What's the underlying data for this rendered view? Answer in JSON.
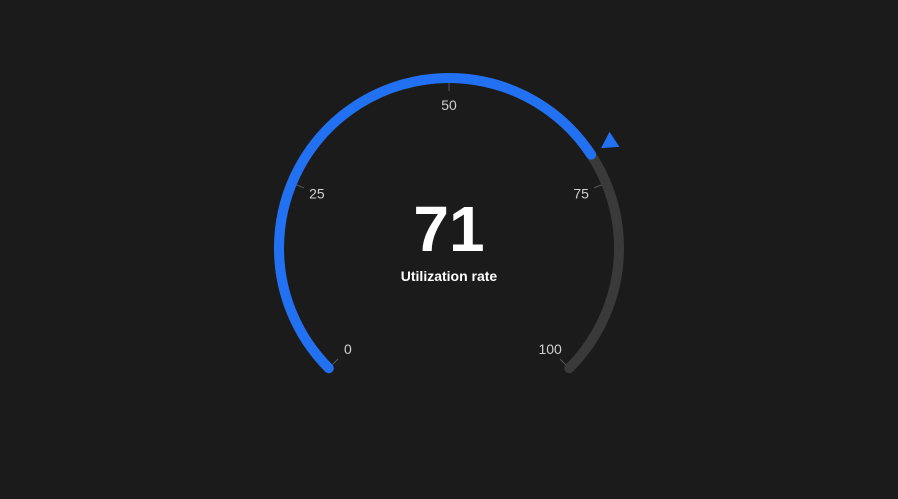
{
  "chart_data": {
    "type": "gauge",
    "value": 71,
    "min": 0,
    "max": 100,
    "ticks": [
      {
        "value": 0,
        "label": "0"
      },
      {
        "value": 25,
        "label": "25"
      },
      {
        "value": 50,
        "label": "50"
      },
      {
        "value": 75,
        "label": "75"
      },
      {
        "value": 100,
        "label": "100"
      }
    ],
    "caption": "Utilization rate",
    "value_label": "71"
  },
  "colors": {
    "background": "#1b1b1b",
    "progress": "#2171f2",
    "track": "#3a3a3a",
    "tick_label": "#d0d0d0",
    "tick_mark": "#5a5a5a",
    "value_text": "#ffffff",
    "caption_text": "#ffffff",
    "pointer": "#2171f2"
  }
}
